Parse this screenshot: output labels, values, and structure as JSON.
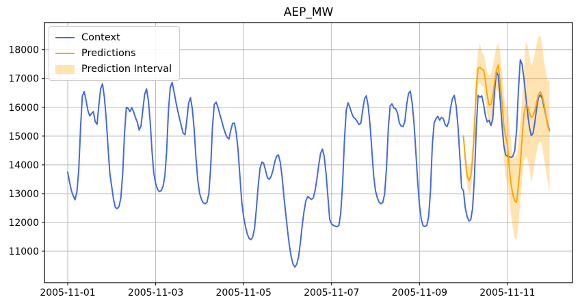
{
  "chart_data": {
    "type": "line",
    "title": "AEP_MW",
    "xlabel": "",
    "ylabel": "",
    "grid": true,
    "legend_position": "upper left",
    "x_unit": "hours since 2005-11-01 00:00",
    "xlim_hours": [
      -12.7,
      275.5
    ],
    "ylim": [
      9907,
      18944
    ],
    "yticks": [
      11000,
      12000,
      13000,
      14000,
      15000,
      16000,
      17000,
      18000
    ],
    "xticks": {
      "hours": [
        0,
        48,
        96,
        144,
        192,
        240
      ],
      "labels": [
        "2005-11-01",
        "2005-11-03",
        "2005-11-05",
        "2005-11-07",
        "2005-11-09",
        "2005-11-11"
      ]
    },
    "series": [
      {
        "name": "Context",
        "color": "#4169e1",
        "start_hour": 0,
        "step_hours": 1,
        "values": [
          13750,
          13400,
          13100,
          12920,
          12790,
          13050,
          13800,
          15300,
          16400,
          16545,
          16250,
          15890,
          15700,
          15780,
          15850,
          15500,
          15410,
          16100,
          16650,
          16815,
          16350,
          15600,
          14600,
          13700,
          13250,
          12800,
          12520,
          12475,
          12550,
          12850,
          13700,
          15100,
          16000,
          15960,
          15850,
          15990,
          15830,
          15640,
          15480,
          15210,
          15350,
          15900,
          16450,
          16640,
          16250,
          15500,
          14500,
          13700,
          13350,
          13150,
          13070,
          13100,
          13250,
          13600,
          14500,
          15900,
          16700,
          16860,
          16550,
          16200,
          15900,
          15620,
          15350,
          15100,
          15050,
          15550,
          16150,
          16335,
          15950,
          15250,
          14250,
          13450,
          13000,
          12800,
          12680,
          12650,
          12700,
          13000,
          13900,
          15300,
          16100,
          16180,
          16000,
          15750,
          15550,
          15300,
          15100,
          14950,
          14900,
          15200,
          15440,
          15450,
          15100,
          14500,
          13600,
          12700,
          12200,
          11850,
          11600,
          11450,
          11400,
          11500,
          11800,
          12500,
          13300,
          13900,
          14100,
          14050,
          13800,
          13550,
          13500,
          13600,
          13800,
          14100,
          14300,
          14350,
          14100,
          13600,
          12900,
          12300,
          11700,
          11200,
          10800,
          10550,
          10450,
          10550,
          10800,
          11300,
          11900,
          12400,
          12750,
          12900,
          12850,
          12800,
          12850,
          13100,
          13500,
          14000,
          14400,
          14550,
          14300,
          13700,
          12900,
          12100,
          11950,
          11900,
          11870,
          11850,
          11900,
          12300,
          13300,
          14800,
          15900,
          16160,
          16000,
          15800,
          15650,
          15600,
          15500,
          15400,
          15450,
          15900,
          16300,
          16400,
          16050,
          15400,
          14500,
          13600,
          13100,
          12850,
          12700,
          12650,
          12700,
          13000,
          13900,
          15300,
          16050,
          16120,
          15980,
          15950,
          15800,
          15450,
          15350,
          15330,
          15500,
          16100,
          16480,
          16560,
          16150,
          15450,
          14450,
          13400,
          12600,
          12100,
          11880,
          11860,
          11900,
          12200,
          13100,
          14700,
          15465,
          15600,
          15690,
          15550,
          15650,
          15600,
          15400,
          15330,
          15500,
          16000,
          16300,
          16415,
          16050,
          15350,
          14300,
          13200,
          13100,
          12500,
          12200,
          12050,
          12100,
          12500,
          13600,
          15300,
          16415,
          16350,
          16400,
          16100,
          15700,
          15490,
          15550,
          15370,
          15600,
          16600,
          17230,
          17100,
          16300,
          15400,
          14700,
          14350,
          14300,
          14280,
          14260,
          14300,
          14500,
          15200,
          16600,
          17650,
          17500,
          17000,
          16400,
          15800,
          15300,
          15020,
          15100,
          15500,
          16000,
          16350,
          16430,
          16300,
          16000,
          15700,
          15400,
          15200
        ]
      },
      {
        "name": "Predictions",
        "color": "#ffa500",
        "start_hour": 216,
        "step_hours": 1,
        "values": [
          15000,
          14200,
          13600,
          13450,
          13600,
          14200,
          15300,
          16700,
          17350,
          17390,
          17320,
          17300,
          16900,
          16400,
          16080,
          16100,
          16400,
          16900,
          17300,
          17470,
          16900,
          16200,
          15400,
          15000,
          14700,
          13900,
          13300,
          12950,
          12750,
          12700,
          13300,
          14000,
          14900,
          15765,
          16080,
          16050,
          15800,
          15650,
          15700,
          15900,
          16200,
          16450,
          16545,
          16400,
          16100,
          15700,
          15350,
          15170
        ]
      }
    ],
    "band": {
      "name": "Prediction Interval",
      "color": "#ffa500",
      "opacity": 0.3,
      "start_hour": 216,
      "step_hours": 1,
      "lower": [
        14850,
        13900,
        13250,
        12950,
        13100,
        13700,
        14750,
        16100,
        16800,
        16850,
        16750,
        16700,
        16250,
        15750,
        15400,
        15420,
        15700,
        16200,
        16550,
        16600,
        16100,
        15300,
        14300,
        13550,
        13400,
        12800,
        12200,
        11800,
        11450,
        11400,
        11900,
        12700,
        13500,
        14100,
        14300,
        14200,
        13900,
        13390,
        13700,
        14100,
        14450,
        14700,
        14815,
        14600,
        14200,
        13800,
        13400,
        13070
      ],
      "upper": [
        15150,
        14500,
        14000,
        13950,
        14100,
        14750,
        15900,
        17300,
        17950,
        18230,
        17900,
        17850,
        17550,
        17200,
        17100,
        17150,
        17400,
        17800,
        18100,
        18240,
        17900,
        17300,
        16500,
        16000,
        16050,
        15400,
        14800,
        14300,
        14250,
        14400,
        14800,
        15500,
        16300,
        17300,
        18280,
        18150,
        17800,
        17430,
        17600,
        17900,
        18200,
        18450,
        18500,
        18100,
        17600,
        17200,
        16900,
        16960
      ]
    }
  },
  "legend": {
    "items": [
      {
        "label": "Context",
        "type": "line",
        "color": "#4169e1"
      },
      {
        "label": "Predictions",
        "type": "line",
        "color": "#ffa500"
      },
      {
        "label": "Prediction Interval",
        "type": "patch",
        "color": "#ffe4b2"
      }
    ]
  },
  "colors": {
    "context_line": "#4169e1",
    "predictions_line": "#ffa500",
    "interval_fill": "#ffe4b2",
    "grid": "#b8b8b8",
    "spine": "#000000"
  }
}
